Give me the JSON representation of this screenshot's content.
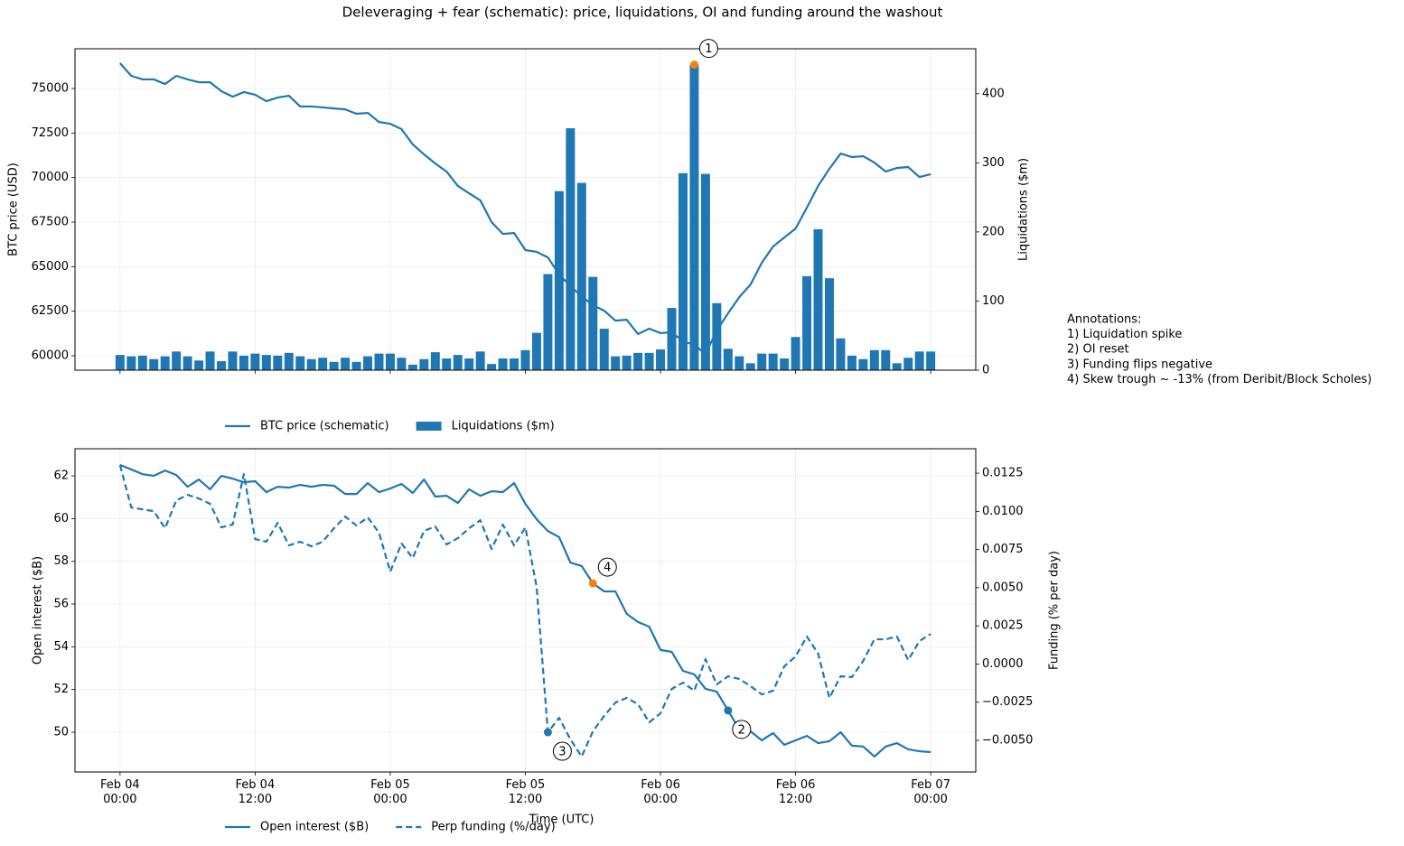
{
  "chart_data": [
    {
      "type": "combo",
      "title": "Deleveraging + fear (schematic): price, liquidations, OI and funding around the washout",
      "ylabel": "BTC price (USD)",
      "y2label": "Liquidations ($m)",
      "xlim": [
        -4,
        76
      ],
      "xticks": [
        0,
        12,
        24,
        36,
        48,
        60,
        72
      ],
      "ylim": [
        59190,
        77230
      ],
      "yticks": [
        60000,
        62500,
        65000,
        67500,
        70000,
        72500,
        75000
      ],
      "y2lim": [
        0,
        465
      ],
      "y2ticks": [
        0,
        100,
        200,
        300,
        400
      ],
      "grid": true,
      "x": [
        0,
        1,
        2,
        3,
        4,
        5,
        6,
        7,
        8,
        9,
        10,
        11,
        12,
        13,
        14,
        15,
        16,
        17,
        18,
        19,
        20,
        21,
        22,
        23,
        24,
        25,
        26,
        27,
        28,
        29,
        30,
        31,
        32,
        33,
        34,
        35,
        36,
        37,
        38,
        39,
        40,
        41,
        42,
        43,
        44,
        45,
        46,
        47,
        48,
        49,
        50,
        51,
        52,
        53,
        54,
        55,
        56,
        57,
        58,
        59,
        60,
        61,
        62,
        63,
        64,
        65,
        66,
        67,
        68,
        69,
        70,
        71,
        72
      ],
      "series": [
        {
          "name": "BTC price (schematic)",
          "type": "line",
          "color": "#1f77b4",
          "values": [
            76420,
            75710,
            75510,
            75510,
            75250,
            75710,
            75510,
            75350,
            75350,
            74850,
            74540,
            74800,
            74650,
            74290,
            74490,
            74590,
            73990,
            73990,
            73940,
            73880,
            73830,
            73580,
            73630,
            73120,
            73020,
            72720,
            71860,
            71300,
            70790,
            70340,
            69530,
            69120,
            68720,
            67500,
            66840,
            66890,
            65930,
            65830,
            65520,
            64560,
            63900,
            63340,
            62840,
            62530,
            61970,
            62020,
            61220,
            61520,
            61270,
            61320,
            60810,
            60610,
            60100,
            61420,
            62380,
            63290,
            64000,
            65220,
            66130,
            66640,
            67140,
            68310,
            69530,
            70490,
            71350,
            71150,
            71200,
            70840,
            70340,
            70540,
            70590,
            70030,
            70190
          ]
        },
        {
          "name": "Liquidations ($m)",
          "type": "bar",
          "axis": "y2",
          "color": "#1f77b4",
          "values": [
            22,
            20,
            21,
            16,
            20,
            27,
            20,
            14,
            27,
            13,
            27,
            21,
            24,
            22,
            21,
            25,
            20,
            16,
            18,
            12,
            18,
            12,
            20,
            24,
            24,
            18,
            8,
            16,
            26,
            17,
            22,
            17,
            27,
            9,
            17,
            17,
            29,
            54,
            139,
            259,
            350,
            271,
            135,
            60,
            20,
            21,
            25,
            25,
            30,
            90,
            285,
            442,
            284,
            97,
            31,
            20,
            10,
            24,
            24,
            17,
            48,
            136,
            204,
            133,
            46,
            21,
            16,
            29,
            29,
            10,
            18,
            27,
            27
          ]
        }
      ],
      "annotations": [
        {
          "label": "1",
          "x": 51,
          "y": 442,
          "axis": "y2",
          "color": "#ff7f0e"
        }
      ]
    },
    {
      "type": "line",
      "xlabel": "Time (UTC)",
      "ylabel": "Open interest ($B)",
      "y2label": "Funding (% per day)",
      "xlim": [
        -4,
        76
      ],
      "xticks": [
        {
          "value": 0,
          "label": "Feb 04\n00:00"
        },
        {
          "value": 12,
          "label": "Feb 04\n12:00"
        },
        {
          "value": 24,
          "label": "Feb 05\n00:00"
        },
        {
          "value": 36,
          "label": "Feb 05\n12:00"
        },
        {
          "value": 48,
          "label": "Feb 06\n00:00"
        },
        {
          "value": 60,
          "label": "Feb 06\n12:00"
        },
        {
          "value": 72,
          "label": "Feb 07\n00:00"
        }
      ],
      "ylim": [
        48.14,
        63.27
      ],
      "yticks": [
        50,
        52,
        54,
        56,
        58,
        60,
        62
      ],
      "y2lim": [
        -0.00707,
        0.0141
      ],
      "y2ticks": [
        {
          "value": -0.005,
          "label": "−0.0050"
        },
        {
          "value": -0.0025,
          "label": "−0.0025"
        },
        {
          "value": 0,
          "label": "0.0000"
        },
        {
          "value": 0.0025,
          "label": "0.0025"
        },
        {
          "value": 0.005,
          "label": "0.0050"
        },
        {
          "value": 0.0075,
          "label": "0.0075"
        },
        {
          "value": 0.01,
          "label": "0.0100"
        },
        {
          "value": 0.0125,
          "label": "0.0125"
        }
      ],
      "grid": true,
      "x": [
        0,
        1,
        2,
        3,
        4,
        5,
        6,
        7,
        8,
        9,
        10,
        11,
        12,
        13,
        14,
        15,
        16,
        17,
        18,
        19,
        20,
        21,
        22,
        23,
        24,
        25,
        26,
        27,
        28,
        29,
        30,
        31,
        32,
        33,
        34,
        35,
        36,
        37,
        38,
        39,
        40,
        41,
        42,
        43,
        44,
        45,
        46,
        47,
        48,
        49,
        50,
        51,
        52,
        53,
        54,
        55,
        56,
        57,
        58,
        59,
        60,
        61,
        62,
        63,
        64,
        65,
        66,
        67,
        68,
        69,
        70,
        71,
        72
      ],
      "series": [
        {
          "name": "Open interest ($B)",
          "type": "line",
          "color": "#1f77b4",
          "values": [
            62.51,
            62.3,
            62.08,
            62.0,
            62.25,
            62.04,
            61.49,
            61.83,
            61.37,
            62.0,
            61.87,
            61.7,
            61.75,
            61.24,
            61.49,
            61.45,
            61.58,
            61.49,
            61.58,
            61.54,
            61.15,
            61.15,
            61.66,
            61.24,
            61.41,
            61.62,
            61.2,
            61.83,
            61.03,
            61.07,
            60.73,
            61.37,
            61.07,
            61.28,
            61.24,
            61.66,
            60.69,
            59.97,
            59.42,
            59.13,
            57.94,
            57.78,
            56.97,
            56.59,
            56.59,
            55.54,
            55.16,
            54.94,
            53.85,
            53.76,
            52.87,
            52.71,
            52.03,
            51.9,
            51.02,
            50.13,
            50.04,
            49.62,
            49.96,
            49.41,
            49.62,
            49.83,
            49.49,
            49.58,
            50.0,
            49.37,
            49.33,
            48.86,
            49.33,
            49.49,
            49.2,
            49.11,
            49.07
          ]
        },
        {
          "name": "Perp funding (%/day)",
          "type": "line",
          "dash": true,
          "axis": "y2",
          "color": "#1f77b4",
          "values": [
            0.01303,
            0.01025,
            0.01013,
            0.01001,
            0.00889,
            0.01072,
            0.01108,
            0.01084,
            0.01049,
            0.00895,
            0.00913,
            0.01244,
            0.00818,
            0.00801,
            0.00925,
            0.00777,
            0.00801,
            0.00771,
            0.00801,
            0.00889,
            0.00966,
            0.00907,
            0.0096,
            0.0086,
            0.00605,
            0.00789,
            0.00694,
            0.00872,
            0.00901,
            0.00783,
            0.00824,
            0.00889,
            0.00942,
            0.00753,
            0.00913,
            0.00777,
            0.00895,
            0.00505,
            -0.00447,
            -0.00352,
            -0.00494,
            -0.00606,
            -0.00441,
            -0.0034,
            -0.00252,
            -0.00222,
            -0.00263,
            -0.00382,
            -0.00323,
            -0.00163,
            -0.00122,
            -0.00175,
            0.00032,
            -0.00134,
            -0.0008,
            -0.00098,
            -0.00145,
            -0.00199,
            -0.00175,
            -0.00015,
            0.0005,
            0.0018,
            0.00068,
            -0.00222,
            -0.0008,
            -0.00086,
            0.0002,
            0.00162,
            0.00162,
            0.0018,
            0.00026,
            0.0015,
            0.00197
          ]
        }
      ],
      "annotations": [
        {
          "label": "2",
          "x": 54,
          "y": 51.02,
          "color": "#1f77b4"
        },
        {
          "label": "3",
          "x": 38,
          "y": -0.00447,
          "axis": "y2",
          "color": "#1f77b4"
        },
        {
          "label": "4",
          "x": 42,
          "y": 56.97,
          "color": "#ff7f0e"
        }
      ]
    }
  ],
  "notes": {
    "title": "Annotations:",
    "lines": [
      "1) Liquidation spike",
      "2) OI reset",
      "3) Funding flips negative",
      "4) Skew trough ~ -13% (from Deribit/Block Scholes)"
    ]
  }
}
